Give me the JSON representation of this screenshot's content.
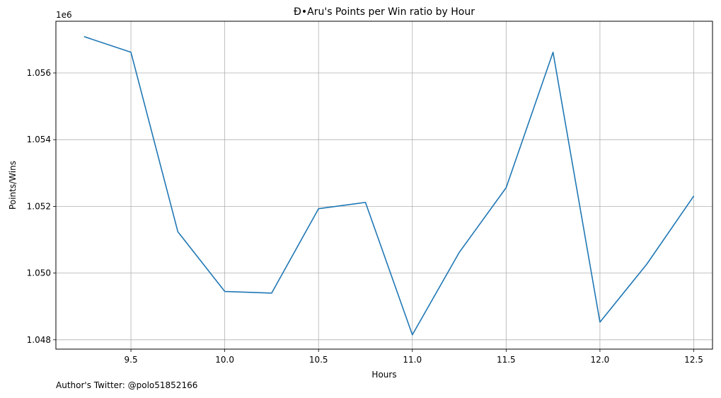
{
  "chart_data": {
    "type": "line",
    "title": "Đ•Aru's Points per Win ratio by Hour",
    "xlabel": "Hours",
    "ylabel": "Points/Wins",
    "y_offset_label": "1e6",
    "xlim": [
      9.1,
      12.6
    ],
    "ylim": [
      1.04772,
      1.05755
    ],
    "grid": true,
    "x_ticks": [
      {
        "value": 9.5,
        "label": "9.5"
      },
      {
        "value": 10.0,
        "label": "10.0"
      },
      {
        "value": 10.5,
        "label": "10.5"
      },
      {
        "value": 11.0,
        "label": "11.0"
      },
      {
        "value": 11.5,
        "label": "11.5"
      },
      {
        "value": 12.0,
        "label": "12.0"
      },
      {
        "value": 12.5,
        "label": "12.5"
      }
    ],
    "y_ticks": [
      {
        "value": 1.048,
        "label": "1.048"
      },
      {
        "value": 1.05,
        "label": "1.050"
      },
      {
        "value": 1.052,
        "label": "1.052"
      },
      {
        "value": 1.054,
        "label": "1.054"
      },
      {
        "value": 1.056,
        "label": "1.056"
      }
    ],
    "series": [
      {
        "color": "#1f77b4",
        "x": [
          9.25,
          9.5,
          9.75,
          10.0,
          10.25,
          10.5,
          10.75,
          11.0,
          11.25,
          11.5,
          11.75,
          12.0,
          12.25,
          12.5
        ],
        "y": [
          1.05709,
          1.05662,
          1.05124,
          1.04945,
          1.0494,
          1.05193,
          1.05212,
          1.04815,
          1.05062,
          1.05256,
          1.05662,
          1.04853,
          1.05027,
          1.05231
        ]
      }
    ]
  },
  "footer": {
    "text": "Author's Twitter: @polo51852166"
  }
}
